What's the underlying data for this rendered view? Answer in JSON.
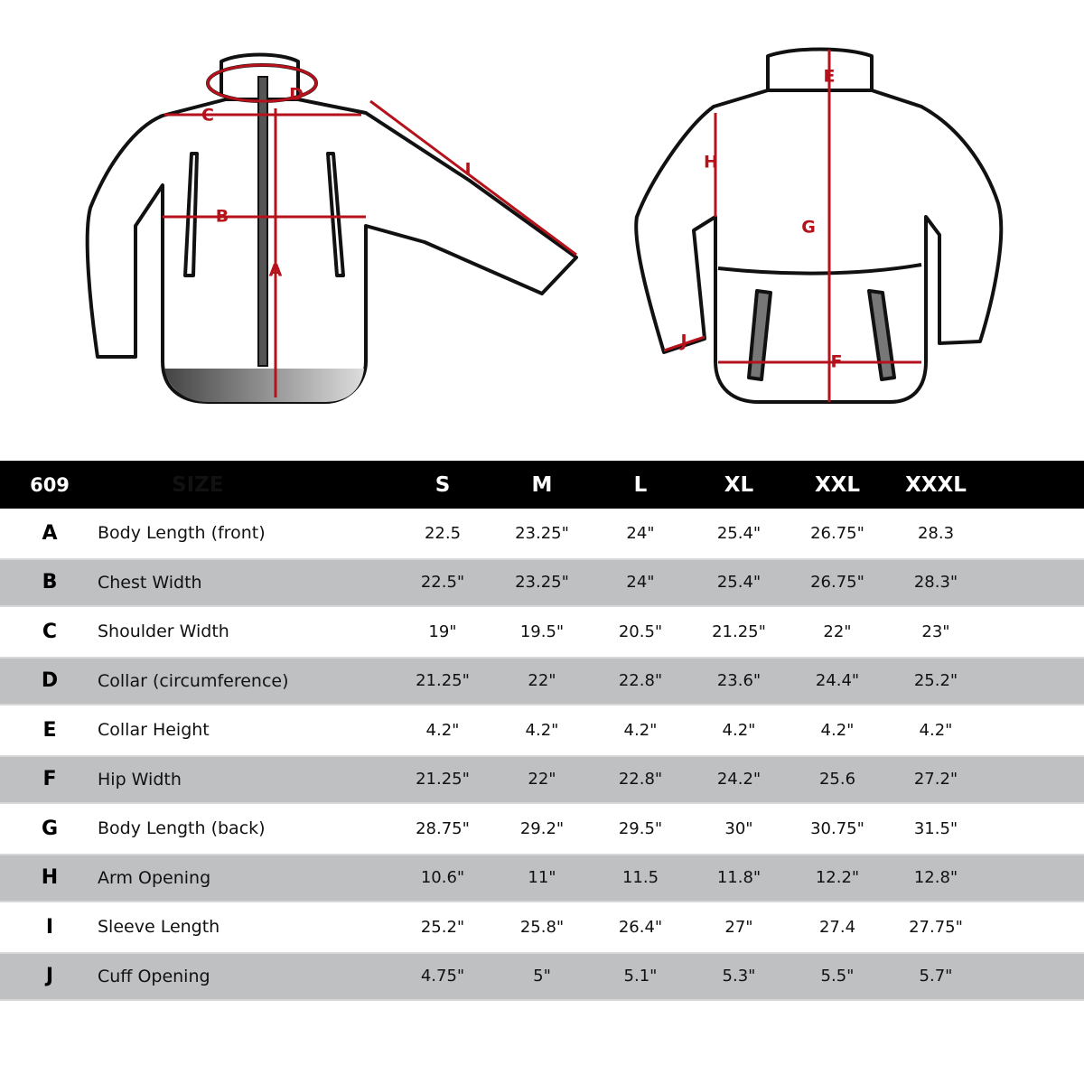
{
  "diagram": {
    "front_labels": [
      "A",
      "B",
      "C",
      "D",
      "I"
    ],
    "back_labels": [
      "E",
      "F",
      "G",
      "H",
      "J"
    ],
    "line_color": "#b5121b"
  },
  "table": {
    "model": "609",
    "size_header": "SIZE",
    "sizes": [
      "S",
      "M",
      "L",
      "XL",
      "XXL",
      "XXXL"
    ],
    "header_bg": "#000000",
    "alt_row_bg": "#bfc0c2",
    "rows": [
      {
        "letter": "A",
        "name": "Body Length (front)",
        "values": [
          "22.5",
          "23.25\"",
          "24\"",
          "25.4\"",
          "26.75\"",
          "28.3"
        ]
      },
      {
        "letter": "B",
        "name": "Chest Width",
        "values": [
          "22.5\"",
          "23.25\"",
          "24\"",
          "25.4\"",
          "26.75\"",
          "28.3\""
        ]
      },
      {
        "letter": "C",
        "name": "Shoulder Width",
        "values": [
          "19\"",
          "19.5\"",
          "20.5\"",
          "21.25\"",
          "22\"",
          "23\""
        ]
      },
      {
        "letter": "D",
        "name": "Collar (circumference)",
        "values": [
          "21.25\"",
          "22\"",
          "22.8\"",
          "23.6\"",
          "24.4\"",
          "25.2\""
        ]
      },
      {
        "letter": "E",
        "name": "Collar Height",
        "values": [
          "4.2\"",
          "4.2\"",
          "4.2\"",
          "4.2\"",
          "4.2\"",
          "4.2\""
        ]
      },
      {
        "letter": "F",
        "name": "Hip Width",
        "values": [
          "21.25\"",
          "22\"",
          "22.8\"",
          "24.2\"",
          "25.6",
          "27.2\""
        ]
      },
      {
        "letter": "G",
        "name": "Body Length (back)",
        "values": [
          "28.75\"",
          "29.2\"",
          "29.5\"",
          "30\"",
          "30.75\"",
          "31.5\""
        ]
      },
      {
        "letter": "H",
        "name": "Arm Opening",
        "values": [
          "10.6\"",
          "11\"",
          "11.5",
          "11.8\"",
          "12.2\"",
          "12.8\""
        ]
      },
      {
        "letter": "I",
        "name": "Sleeve Length",
        "values": [
          "25.2\"",
          "25.8\"",
          "26.4\"",
          "27\"",
          "27.4",
          "27.75\""
        ]
      },
      {
        "letter": "J",
        "name": "Cuff Opening",
        "values": [
          "4.75\"",
          "5\"",
          "5.1\"",
          "5.3\"",
          "5.5\"",
          "5.7\""
        ]
      }
    ]
  }
}
